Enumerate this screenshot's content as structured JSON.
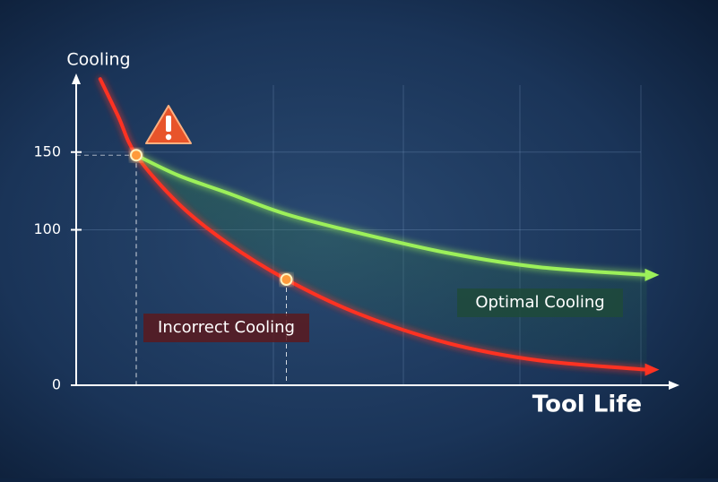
{
  "chart_data": {
    "type": "line",
    "y_label": "Cooling",
    "x_label": "Tool Life",
    "x": [
      4,
      7,
      10,
      17,
      25,
      35,
      47,
      62,
      77,
      95
    ],
    "xlim": [
      0,
      100
    ],
    "ylim": [
      0,
      200
    ],
    "yticks": [
      0,
      100,
      150
    ],
    "grid": true,
    "series": [
      {
        "name": "Incorrect Cooling",
        "color": "#ff3322",
        "values": [
          197,
          173,
          148,
          117,
          92,
          68,
          46,
          27,
          16,
          10
        ]
      },
      {
        "name": "Optimal Cooling",
        "color": "#9cf05a",
        "values": [
          null,
          null,
          148,
          135,
          124,
          110,
          98,
          85,
          76,
          71
        ]
      }
    ],
    "highlighted_points": [
      2,
      5
    ]
  }
}
